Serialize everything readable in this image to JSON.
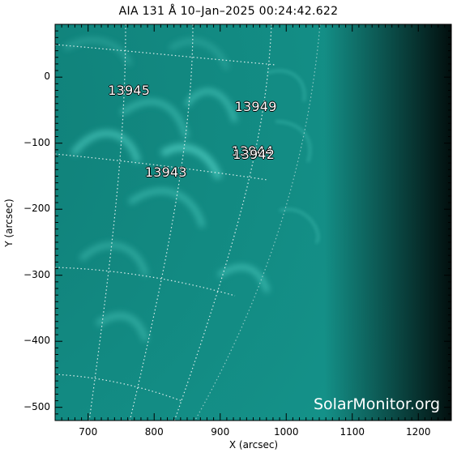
{
  "title": "AIA 131 Å 10–Jan–2025 00:24:42.622",
  "xlabel": "X (arcsec)",
  "ylabel": "Y (arcsec)",
  "watermark": "SolarMonitor.org",
  "colors": {
    "disk": "#1aa39a",
    "limb": "#7cf2e6",
    "corona": "#0e5a55",
    "background": "#000000"
  },
  "axes": {
    "xlim": [
      650,
      1250
    ],
    "ylim": [
      -520,
      80
    ],
    "x_ticks": [
      700,
      800,
      900,
      1000,
      1100,
      1200
    ],
    "y_ticks": [
      0,
      -100,
      -200,
      -300,
      -400,
      -500
    ],
    "x_tick_labels": [
      "700",
      "800",
      "900",
      "1000",
      "1100",
      "1200"
    ],
    "y_tick_labels": [
      "0",
      "−100",
      "−200",
      "−300",
      "−400",
      "−500"
    ]
  },
  "active_regions": [
    {
      "id": "13945",
      "x": 730,
      "y": -20
    },
    {
      "id": "13949",
      "x": 922,
      "y": -45
    },
    {
      "id": "13944",
      "x": 917,
      "y": -113
    },
    {
      "id": "13942",
      "x": 919,
      "y": -118
    },
    {
      "id": "13943",
      "x": 786,
      "y": -145
    }
  ]
}
